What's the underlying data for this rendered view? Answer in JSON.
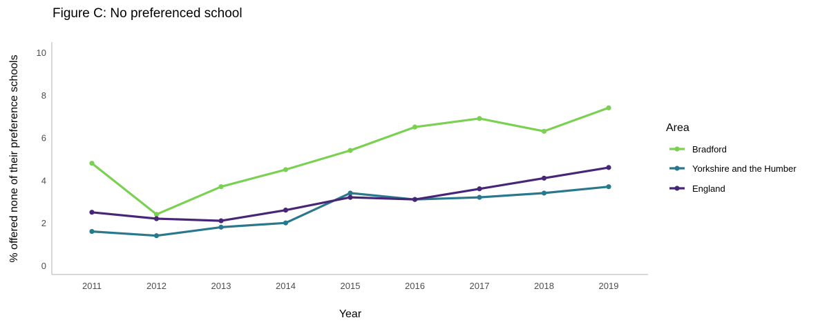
{
  "chart_data": {
    "type": "line",
    "title": "Figure C: No preferenced school",
    "xlabel": "Year",
    "ylabel": "% offered none of their preference schools",
    "x": [
      "2011",
      "2012",
      "2013",
      "2014",
      "2015",
      "2016",
      "2017",
      "2018",
      "2019"
    ],
    "yticks": [
      "0",
      "2",
      "4",
      "6",
      "8",
      "10"
    ],
    "ylim": [
      0,
      10.5
    ],
    "grid": false,
    "legend": {
      "title": "Area",
      "placement": "right"
    },
    "series": [
      {
        "name": "Bradford",
        "color": "#7AD151",
        "values": [
          4.8,
          2.4,
          3.7,
          4.5,
          5.4,
          6.5,
          6.9,
          6.3,
          7.4
        ]
      },
      {
        "name": "Yorkshire and the Humber",
        "color": "#2A788E",
        "values": [
          1.6,
          1.4,
          1.8,
          2.0,
          3.4,
          3.1,
          3.2,
          3.4,
          3.7
        ]
      },
      {
        "name": "England",
        "color": "#482677",
        "values": [
          2.5,
          2.2,
          2.1,
          2.6,
          3.2,
          3.1,
          3.6,
          4.1,
          4.6
        ]
      }
    ]
  }
}
